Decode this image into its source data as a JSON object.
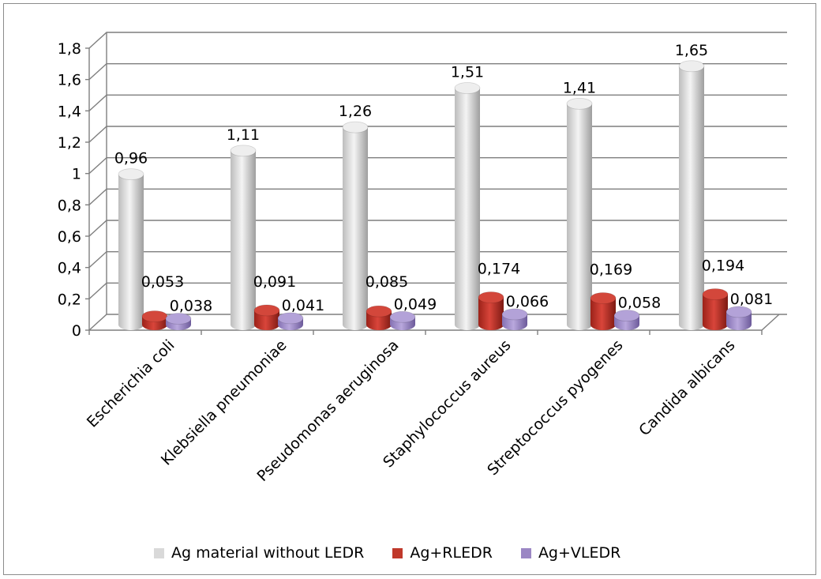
{
  "chart_data": {
    "type": "bar",
    "title": "",
    "xlabel": "",
    "ylabel": "",
    "ylim": [
      0,
      1.8
    ],
    "ytick_labels": [
      "0",
      "0,2",
      "0,4",
      "0,6",
      "0,8",
      "1",
      "1,2",
      "1,4",
      "1,6",
      "1,8"
    ],
    "categories": [
      "Escherichia coli",
      "Klebsiella pneumoniae",
      "Pseudomonas  aeruginosa",
      "Staphylococcus aureus",
      "Streptococcus pyogenes",
      "Candida albicans"
    ],
    "series": [
      {
        "name": "Ag material without LEDR",
        "color": "#d9d9d9",
        "values": [
          0.96,
          1.11,
          1.26,
          1.51,
          1.41,
          1.65
        ],
        "labels": [
          "0,96",
          "1,11",
          "1,26",
          "1,51",
          "1,41",
          "1,65"
        ]
      },
      {
        "name": "Ag+RLEDR",
        "color": "#c0392b",
        "values": [
          0.053,
          0.091,
          0.085,
          0.174,
          0.169,
          0.194
        ],
        "labels": [
          "0,053",
          "0,091",
          "0,085",
          "0,174",
          "0,169",
          "0,194"
        ]
      },
      {
        "name": "Ag+VLEDR",
        "color": "#9b87c4",
        "values": [
          0.038,
          0.041,
          0.049,
          0.066,
          0.058,
          0.081
        ],
        "labels": [
          "0,038",
          "0,041",
          "0,049",
          "0,066",
          "0,058",
          "0,081"
        ]
      }
    ],
    "grid": true,
    "legend_position": "bottom",
    "style": "3d-cylinder"
  }
}
